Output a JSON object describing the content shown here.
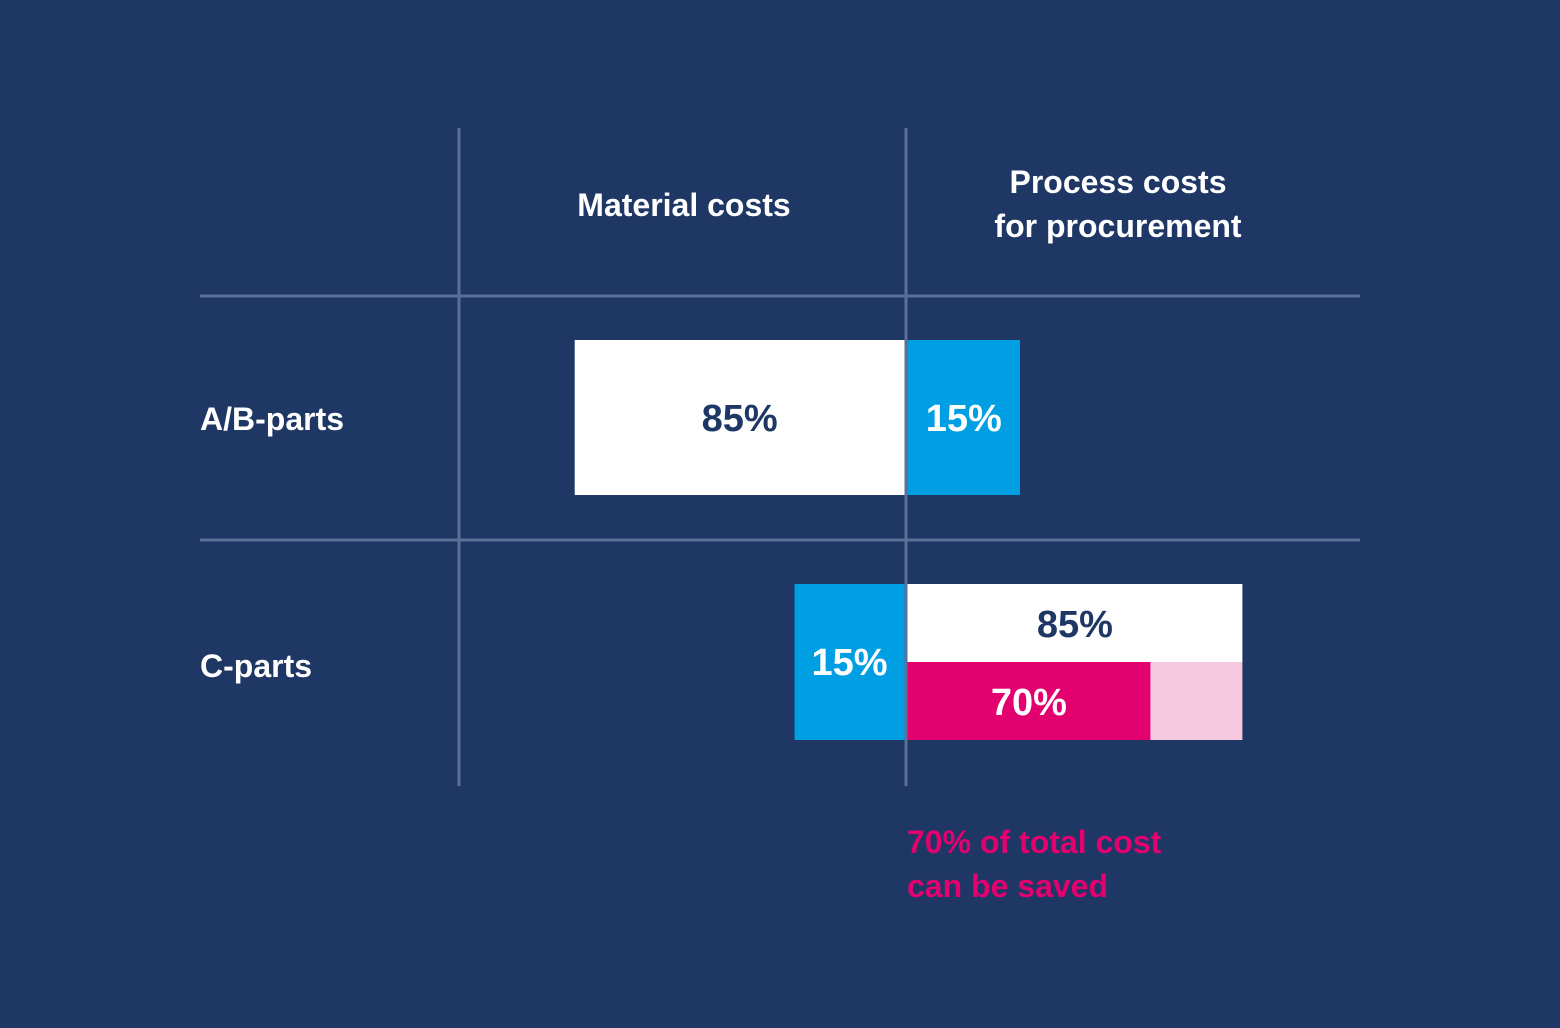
{
  "colors": {
    "background": "#1e3765",
    "grid": "#5c6f96",
    "material": "#ffffff",
    "process_ab": "#009fe3",
    "material_c": "#009fe3",
    "process_c": "#ffffff",
    "savings": "#e3006f",
    "savings_remainder": "#f7c9e1",
    "dark_text": "#1e3765",
    "light_text": "#ffffff",
    "savings_text": "#e3006f"
  },
  "chart_data": {
    "type": "bar",
    "orientation": "horizontal",
    "columns": [
      "Material costs",
      "Process costs for procurement"
    ],
    "column_title_lines": {
      "material": [
        "Material costs"
      ],
      "process": [
        "Process costs",
        "for procurement"
      ]
    },
    "rows": [
      {
        "category": "A/B-parts",
        "material": {
          "value": 85,
          "label": "85%"
        },
        "process": {
          "value": 15,
          "label": "15%"
        }
      },
      {
        "category": "C-parts",
        "material": {
          "value": 15,
          "label": "15%"
        },
        "process": {
          "value": 85,
          "label": "85%"
        },
        "savings": {
          "value": 70,
          "label": "70%"
        }
      }
    ],
    "unit": "%",
    "annotation_lines": [
      "70% of total cost",
      "can be saved"
    ]
  }
}
